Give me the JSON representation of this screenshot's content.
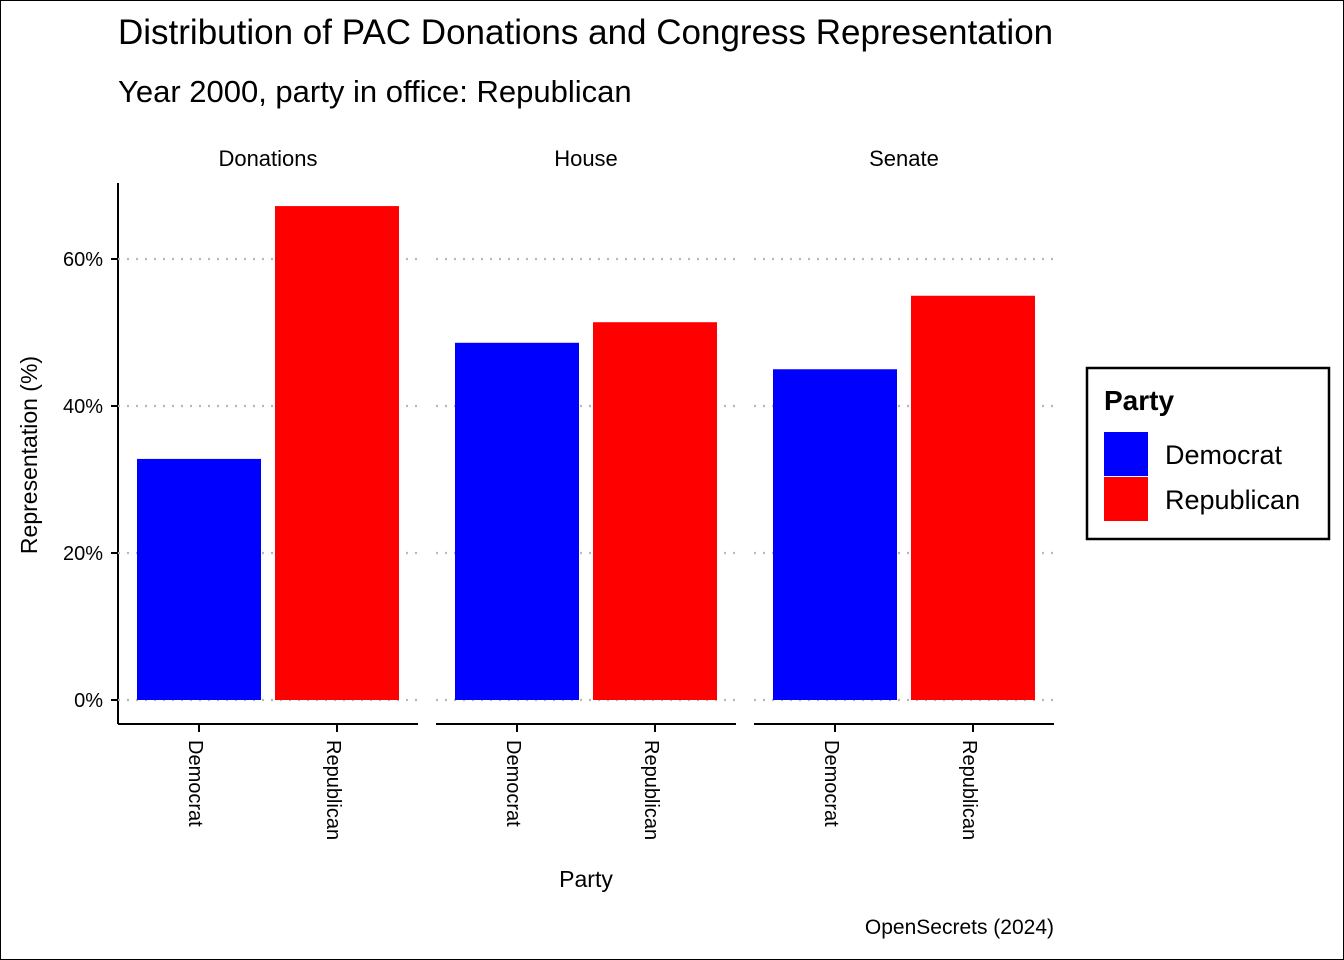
{
  "chart_data": {
    "type": "bar",
    "title": "Distribution of PAC Donations and Congress Representation",
    "subtitle": "Year 2000, party in office: Republican",
    "xlabel": "Party",
    "ylabel": "Representation (%)",
    "caption": "OpenSecrets (2024)",
    "ylim": [
      0,
      70
    ],
    "y_ticks": [
      "0%",
      "20%",
      "40%",
      "60%"
    ],
    "y_tick_values": [
      0,
      20,
      40,
      60
    ],
    "grid": "horizontal dotted",
    "categories": [
      "Democrat",
      "Republican"
    ],
    "facets": [
      {
        "name": "Donations",
        "values": [
          32.8,
          67.2
        ]
      },
      {
        "name": "House",
        "values": [
          48.6,
          51.4
        ]
      },
      {
        "name": "Senate",
        "values": [
          45.0,
          55.0
        ]
      }
    ],
    "legend": {
      "title": "Party",
      "placement": "right",
      "entries": [
        {
          "label": "Democrat",
          "color": "#0000ff"
        },
        {
          "label": "Republican",
          "color": "#ff0000"
        }
      ]
    }
  }
}
